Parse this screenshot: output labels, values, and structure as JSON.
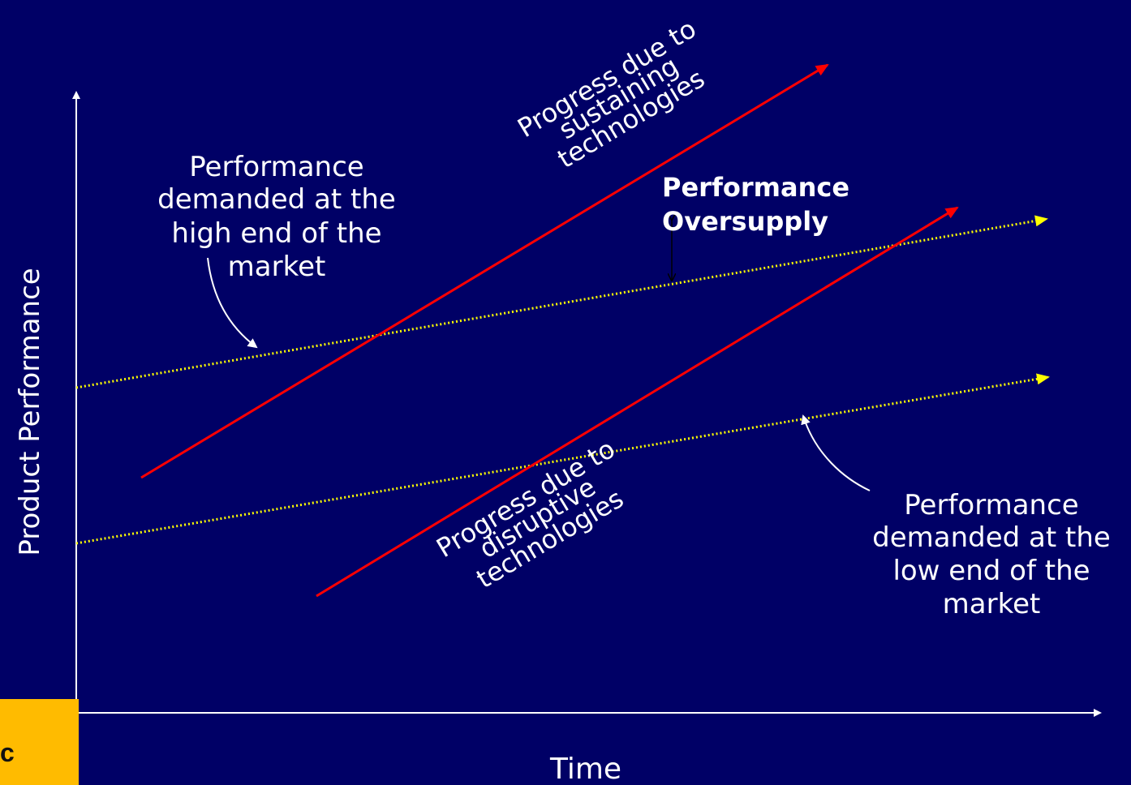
{
  "axes": {
    "y_label": "Product Performance",
    "x_label": "Time"
  },
  "annotations": {
    "high_end": [
      "Performance",
      "demanded at the",
      "high end of the",
      "market"
    ],
    "low_end": [
      "Performance",
      "demanded at the",
      "low end of the",
      "market"
    ],
    "sustaining": [
      "Progress due to",
      "sustaining",
      "technologies"
    ],
    "disruptive": [
      "Progress due to",
      "disruptive",
      "technologies"
    ],
    "oversupply": [
      "Performance",
      "Oversupply"
    ]
  },
  "corner": {
    "letter": "c"
  },
  "colors": {
    "background": "#000066",
    "technology_lines": "#ff0000",
    "demand_lines": "#ffff00",
    "axis": "#ffffff",
    "oversupply_marker": "#000000",
    "corner_box": "#ffbb00"
  }
}
